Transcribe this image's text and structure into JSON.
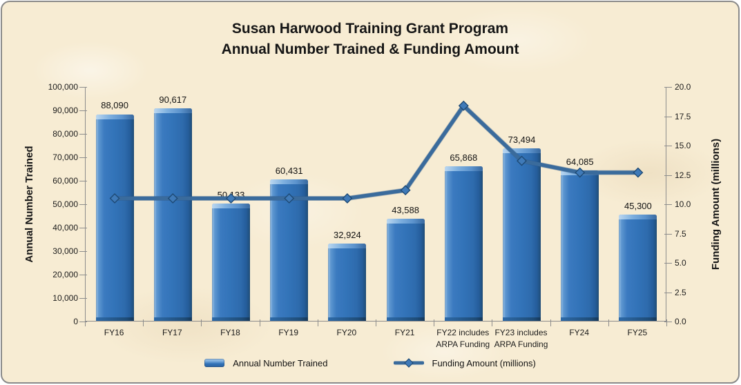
{
  "title": {
    "line1": "Susan Harwood Training Grant Program",
    "line2": "Annual Number Trained & Funding Amount"
  },
  "chart_data": {
    "type": "bar",
    "subtype": "combo-bar-line-dual-axis",
    "categories": [
      "FY16",
      "FY17",
      "FY18",
      "FY19",
      "FY20",
      "FY21",
      "FY22 includes ARPA Funding",
      "FY23 includes ARPA Funding",
      "FY24",
      "FY25"
    ],
    "category_label_lines": [
      [
        "FY16"
      ],
      [
        "FY17"
      ],
      [
        "FY18"
      ],
      [
        "FY19"
      ],
      [
        "FY20"
      ],
      [
        "FY21"
      ],
      [
        "FY22 includes",
        "ARPA Funding"
      ],
      [
        "FY23 includes",
        "ARPA Funding"
      ],
      [
        "FY24"
      ],
      [
        "FY25"
      ]
    ],
    "series": [
      {
        "name": "Annual Number Trained",
        "type": "bar",
        "axis": "left",
        "values": [
          88090,
          90617,
          50133,
          60431,
          32924,
          43588,
          65868,
          73494,
          64085,
          45300
        ],
        "data_labels": [
          "88,090",
          "90,617",
          "50,133",
          "60,431",
          "32,924",
          "43,588",
          "65,868",
          "73,494",
          "64,085",
          "45,300"
        ]
      },
      {
        "name": "Funding Amount (millions)",
        "type": "line",
        "axis": "right",
        "marker": "diamond",
        "values": [
          10.5,
          10.5,
          10.5,
          10.5,
          10.5,
          11.2,
          18.4,
          13.7,
          12.7,
          12.7
        ]
      }
    ],
    "left_axis": {
      "title": "Annual Number Trained",
      "min": 0,
      "max": 100000,
      "step": 10000,
      "tick_labels": [
        "100,000",
        "90,000",
        "80,000",
        "70,000",
        "60,000",
        "50,000",
        "40,000",
        "30,000",
        "20,000",
        "10,000",
        "0"
      ]
    },
    "right_axis": {
      "title": "Funding Amount (millions)",
      "min": 0,
      "max": 20,
      "step": 2.5,
      "tick_labels": [
        "20.0",
        "17.5",
        "15.0",
        "12.5",
        "10.0",
        "7.5",
        "5.0",
        "2.5",
        "0.0"
      ]
    },
    "legend_position": "bottom",
    "grid": "off"
  },
  "colors": {
    "background": "#F7ECD3",
    "frame_border": "#8A8A8A",
    "bar_fill": "#3273B8",
    "bar_dark": "#1F4E79",
    "bar_highlight": "#9CC3E8",
    "line": "#3A6B9C",
    "line_shadow": "#2C5480",
    "marker_fill": "#3F7AB8",
    "marker_edge": "#1E4A75",
    "axis": "#8C8C8C",
    "text": "#1A1A1A"
  }
}
